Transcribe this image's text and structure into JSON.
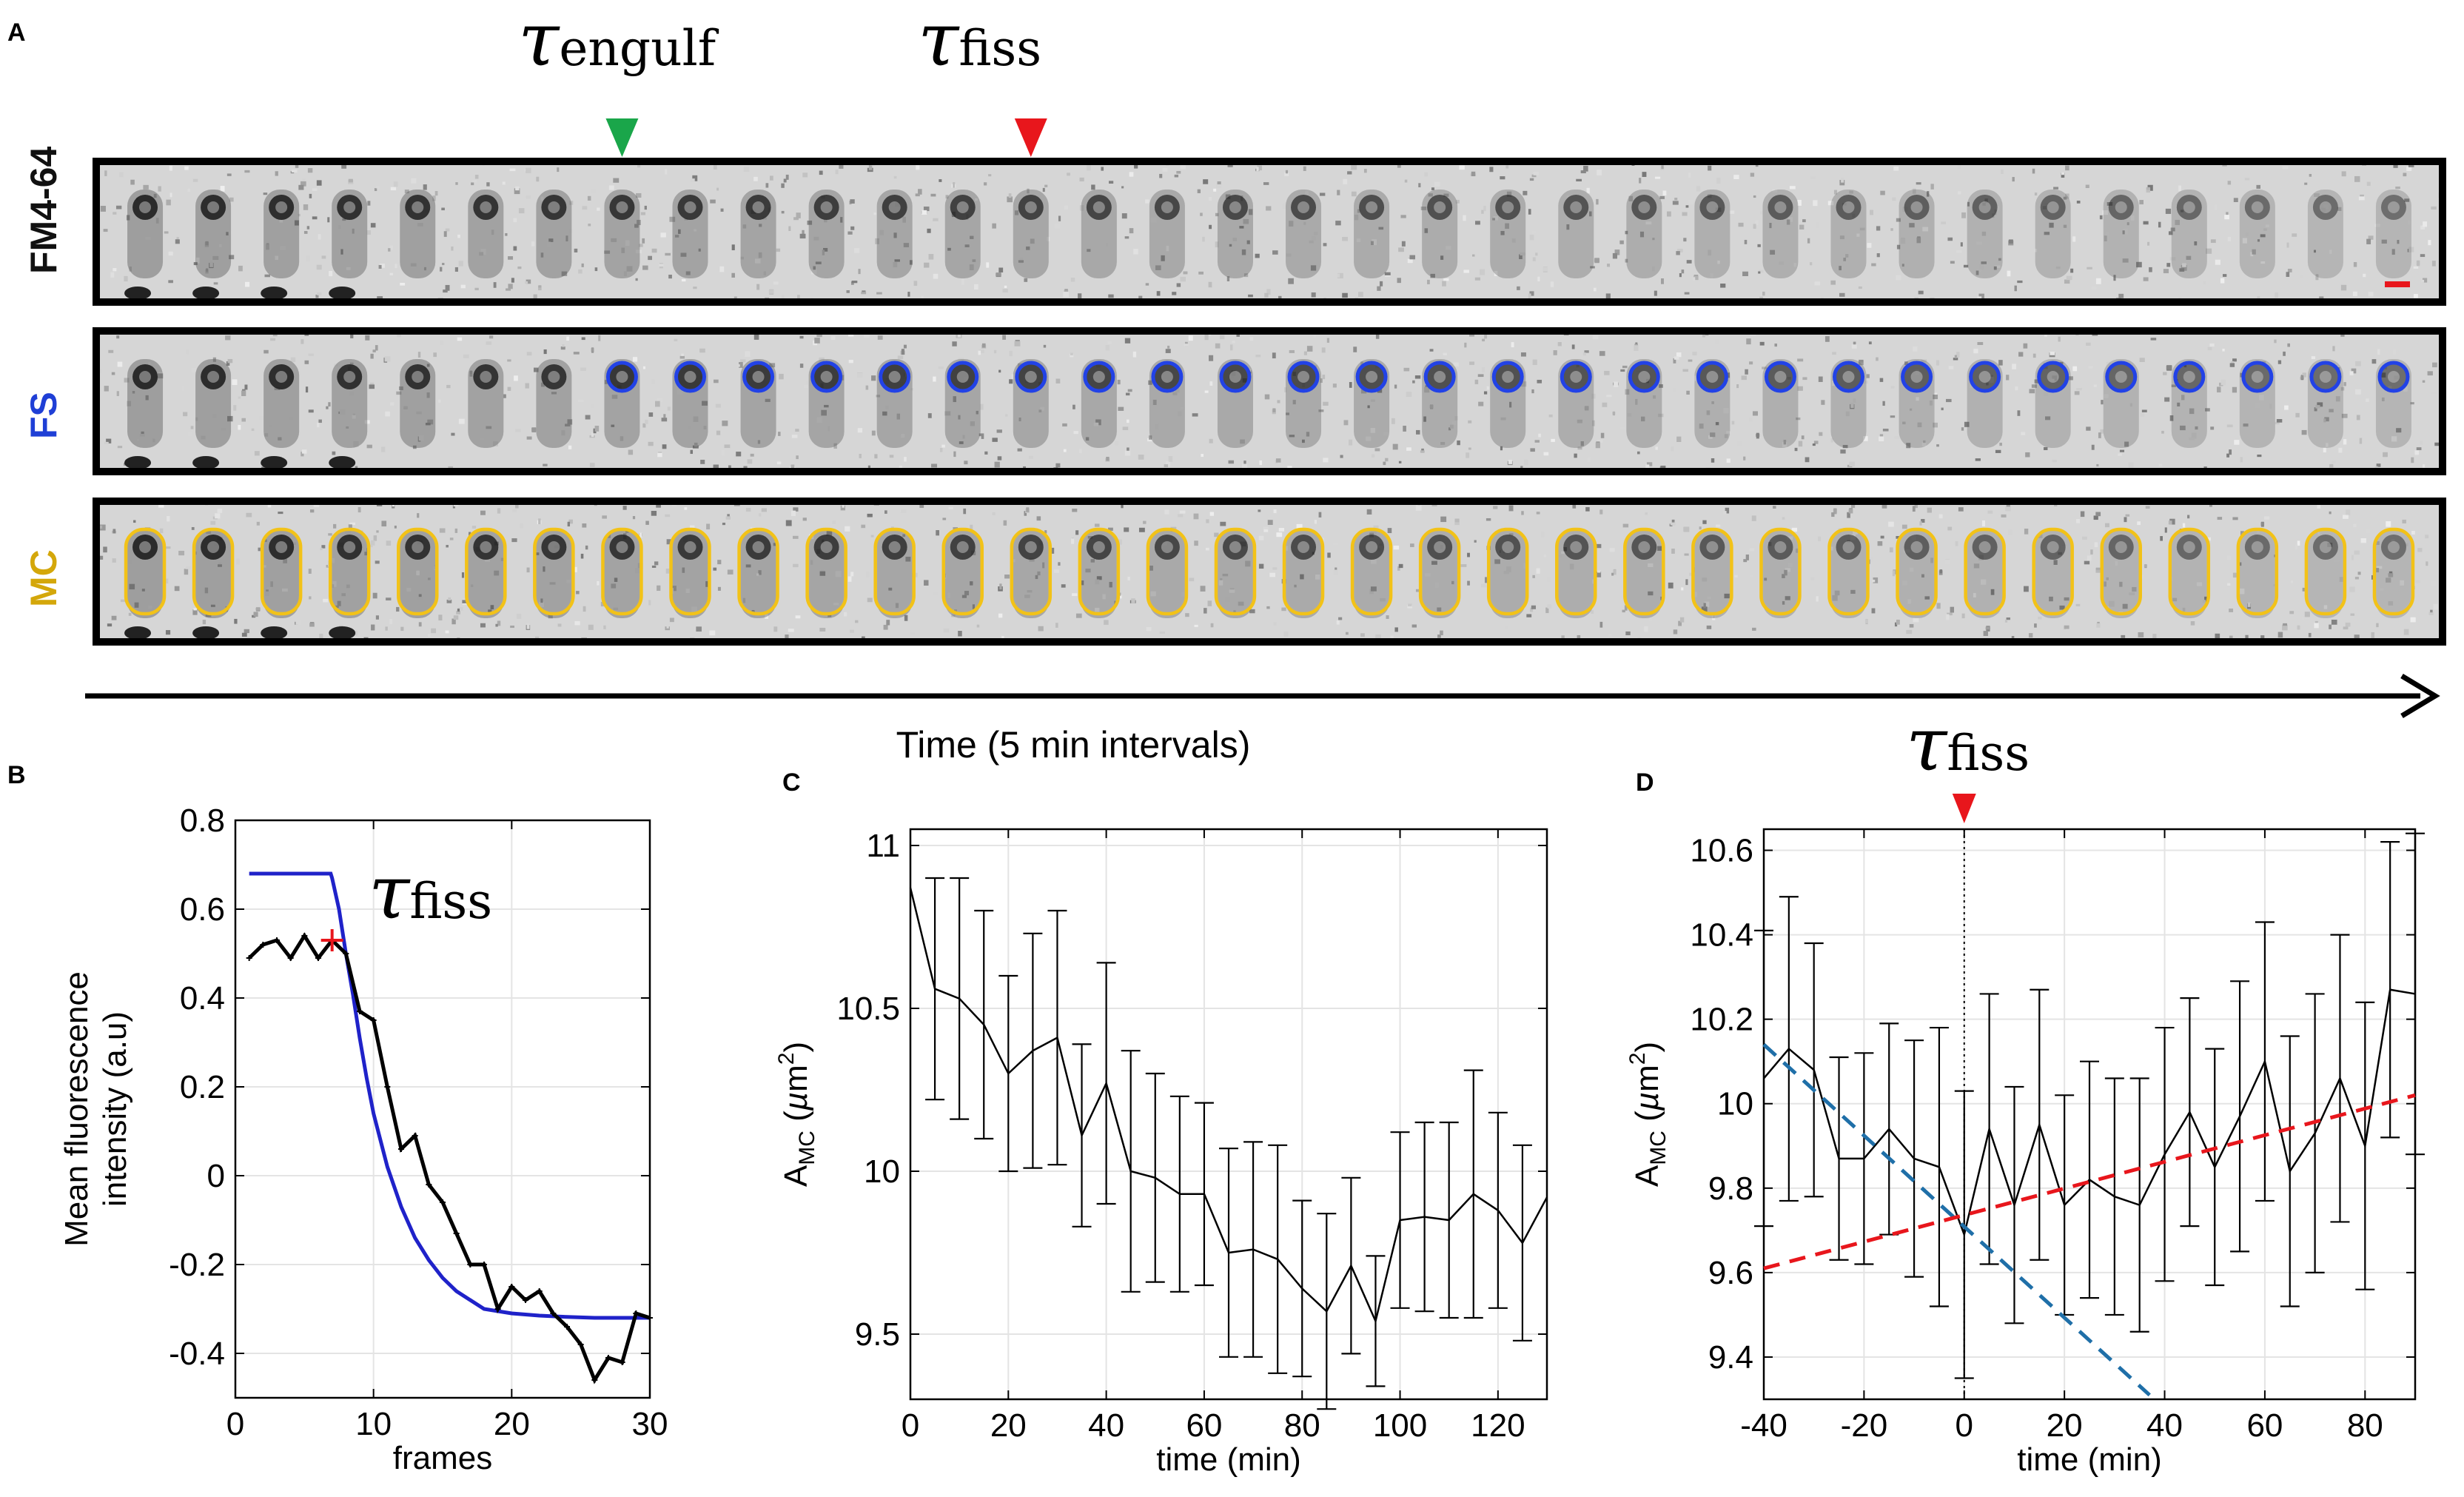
{
  "panel_labels": {
    "a": "A",
    "b": "B",
    "c": "C",
    "d": "D"
  },
  "panel_a": {
    "tau_engulf": {
      "symbol": "τ",
      "subscript": "engulf"
    },
    "tau_fiss": {
      "symbol": "τ",
      "subscript": "fiss"
    },
    "frame_count": 34,
    "engulf_frame_index": 7,
    "fiss_frame_index": 13,
    "rows": [
      {
        "label": "FM4-64",
        "label_color": "#111111",
        "contour": "none"
      },
      {
        "label": "FS",
        "label_color": "#1f3fd6",
        "contour": "forespore"
      },
      {
        "label": "MC",
        "label_color": "#d4a70a",
        "contour": "mother-cell"
      }
    ],
    "time_axis_label": "Time (5 min intervals)",
    "colors": {
      "engulf_marker": "#1aa64a",
      "fiss_marker": "#e8161c",
      "fs_contour": "#2242e6",
      "mc_contour": "#f2c218",
      "scale_bar": "#e8161c"
    }
  },
  "chart_data": [
    {
      "panel": "B",
      "type": "line",
      "xlabel": "frames",
      "ylabel": "Mean fluorescence intensity (a.u)",
      "xlim": [
        0,
        30
      ],
      "ylim": [
        -0.5,
        0.8
      ],
      "xticks": [
        0,
        10,
        20,
        30
      ],
      "yticks": [
        -0.4,
        -0.2,
        0,
        0.2,
        0.4,
        0.6,
        0.8
      ],
      "annotation": {
        "symbol": "τ",
        "subscript": "fiss"
      },
      "fiss_point": {
        "x": 7,
        "y": 0.53
      },
      "series": [
        {
          "name": "data",
          "color": "#000000",
          "x": [
            1,
            2,
            3,
            4,
            5,
            6,
            7,
            8,
            9,
            10,
            11,
            12,
            13,
            14,
            15,
            16,
            17,
            18,
            19,
            20,
            21,
            22,
            23,
            24,
            25,
            26,
            27,
            28,
            29,
            30
          ],
          "y": [
            0.49,
            0.52,
            0.53,
            0.49,
            0.54,
            0.49,
            0.53,
            0.5,
            0.37,
            0.35,
            0.2,
            0.06,
            0.09,
            -0.02,
            -0.06,
            -0.13,
            -0.2,
            -0.2,
            -0.3,
            -0.25,
            -0.28,
            -0.26,
            -0.31,
            -0.34,
            -0.38,
            -0.46,
            -0.41,
            -0.42,
            -0.31,
            -0.32
          ]
        },
        {
          "name": "fit",
          "color": "#1f22c9",
          "x": [
            1,
            6.9,
            7,
            7.5,
            8,
            8.5,
            9,
            9.5,
            10,
            11,
            12,
            13,
            14,
            15,
            16,
            17,
            18,
            19,
            20,
            22,
            24,
            26,
            28,
            30
          ],
          "y": [
            0.68,
            0.68,
            0.67,
            0.6,
            0.5,
            0.41,
            0.31,
            0.22,
            0.14,
            0.02,
            -0.07,
            -0.14,
            -0.19,
            -0.23,
            -0.26,
            -0.28,
            -0.3,
            -0.305,
            -0.31,
            -0.315,
            -0.318,
            -0.32,
            -0.32,
            -0.32
          ]
        }
      ]
    },
    {
      "panel": "C",
      "type": "line",
      "xlabel": "time (min)",
      "ylabel": "A",
      "ylabel_sub": "MC",
      "ylabel_unit_pre": "(",
      "ylabel_unit_mu": "µ",
      "ylabel_unit": "m",
      "ylabel_unit_sup": "2",
      "ylabel_unit_post": ")",
      "xlim": [
        0,
        130
      ],
      "ylim": [
        9.3,
        11.05
      ],
      "xticks": [
        0,
        20,
        40,
        60,
        80,
        100,
        120
      ],
      "yticks": [
        9.5,
        10,
        10.5,
        11
      ],
      "x": [
        0,
        5,
        10,
        15,
        20,
        25,
        30,
        35,
        40,
        45,
        50,
        55,
        60,
        65,
        70,
        75,
        80,
        85,
        90,
        95,
        100,
        105,
        110,
        115,
        120,
        125,
        130
      ],
      "y": [
        10.87,
        10.56,
        10.53,
        10.45,
        10.3,
        10.37,
        10.41,
        10.11,
        10.27,
        10.0,
        9.98,
        9.93,
        9.93,
        9.75,
        9.76,
        9.73,
        9.64,
        9.57,
        9.71,
        9.54,
        9.85,
        9.86,
        9.85,
        9.93,
        9.88,
        9.78,
        9.92
      ],
      "err": [
        0.0,
        0.34,
        0.37,
        0.35,
        0.3,
        0.36,
        0.39,
        0.28,
        0.37,
        0.37,
        0.32,
        0.3,
        0.28,
        0.32,
        0.33,
        0.35,
        0.27,
        0.3,
        0.27,
        0.2,
        0.27,
        0.29,
        0.3,
        0.38,
        0.3,
        0.3,
        0.0
      ]
    },
    {
      "panel": "D",
      "type": "line",
      "xlabel": "time (min)",
      "ylabel": "A",
      "ylabel_sub": "MC",
      "ylabel_unit_pre": "(",
      "ylabel_unit_mu": "µ",
      "ylabel_unit": "m",
      "ylabel_unit_sup": "2",
      "ylabel_unit_post": ")",
      "annotation": {
        "symbol": "τ",
        "subscript": "fiss"
      },
      "xlim": [
        -40,
        90
      ],
      "ylim": [
        9.3,
        10.65
      ],
      "xticks": [
        -40,
        -20,
        0,
        20,
        40,
        60,
        80
      ],
      "yticks": [
        9.4,
        9.6,
        9.8,
        10,
        10.2,
        10.4,
        10.6
      ],
      "x": [
        -40,
        -35,
        -30,
        -25,
        -20,
        -15,
        -10,
        -5,
        0,
        5,
        10,
        15,
        20,
        25,
        30,
        35,
        40,
        45,
        50,
        55,
        60,
        65,
        70,
        75,
        80,
        85,
        90
      ],
      "y": [
        10.06,
        10.13,
        10.08,
        9.87,
        9.87,
        9.94,
        9.87,
        9.85,
        9.69,
        9.94,
        9.76,
        9.95,
        9.76,
        9.82,
        9.78,
        9.76,
        9.88,
        9.98,
        9.85,
        9.97,
        10.1,
        9.84,
        9.93,
        10.06,
        9.9,
        10.27,
        10.26
      ],
      "err": [
        0.35,
        0.36,
        0.3,
        0.24,
        0.25,
        0.25,
        0.28,
        0.33,
        0.34,
        0.32,
        0.28,
        0.32,
        0.26,
        0.28,
        0.28,
        0.3,
        0.3,
        0.27,
        0.28,
        0.32,
        0.33,
        0.32,
        0.33,
        0.34,
        0.34,
        0.35,
        0.38
      ],
      "fit_lines": [
        {
          "name": "pre-fission fit",
          "color": "#1f6fa8",
          "x": [
            -40,
            37
          ],
          "y": [
            10.14,
            9.31
          ]
        },
        {
          "name": "post-fission fit",
          "color": "#e8161c",
          "x": [
            -40,
            90
          ],
          "y": [
            9.61,
            10.02
          ]
        }
      ],
      "marker_x": 0
    }
  ]
}
